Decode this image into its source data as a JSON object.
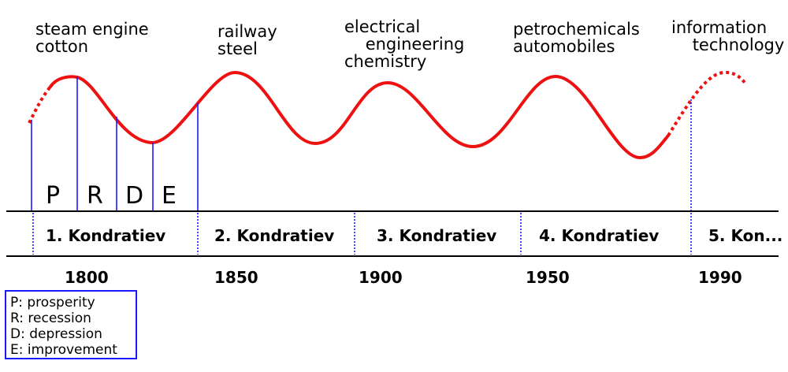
{
  "innovations": [
    "steam engine\ncotton",
    "railway\nsteel",
    "electrical\n    engineering\nchemistry",
    "petrochemicals\nautomobiles",
    "information\n    technology"
  ],
  "phases": [
    "P",
    "R",
    "D",
    "E"
  ],
  "waves": [
    "1. Kondratiev",
    "2. Kondratiev",
    "3. Kondratiev",
    "4. Kondratiev",
    "5. Kon..."
  ],
  "years": [
    "1800",
    "1850",
    "1900",
    "1950",
    "1990"
  ],
  "legend": [
    "P: prosperity",
    "R: recession",
    "D: depression",
    "E: improvement"
  ],
  "colors": {
    "curve": "#ee1111",
    "dividers": "#1b1bff",
    "axis": "#000000"
  }
}
